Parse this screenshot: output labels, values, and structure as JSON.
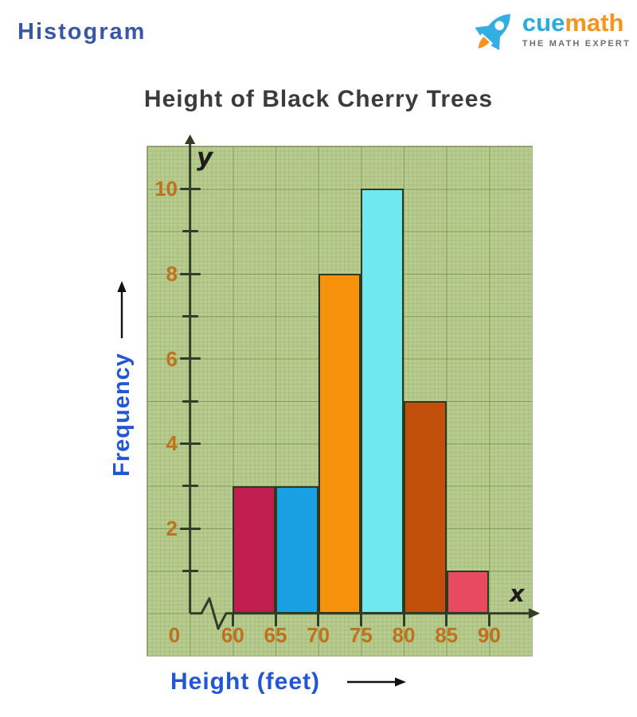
{
  "page": {
    "heading": "Histogram"
  },
  "logo": {
    "cue": "cue",
    "math": "math",
    "tagline": "THE MATH EXPERT",
    "cue_color": "#29abe2",
    "math_color": "#f7941d"
  },
  "chart_data": {
    "type": "bar",
    "title": "Height of Black Cherry Trees",
    "xlabel": "Height (feet)",
    "ylabel": "Frequency",
    "x_symbol": "x",
    "y_symbol": "y",
    "origin_label": "0",
    "bin_edges": [
      60,
      65,
      70,
      75,
      80,
      85,
      90
    ],
    "bins": [
      {
        "range": "60-65",
        "value": 3,
        "color": "#c01e4e"
      },
      {
        "range": "65-70",
        "value": 3,
        "color": "#18a0e2"
      },
      {
        "range": "70-75",
        "value": 8,
        "color": "#f6920b"
      },
      {
        "range": "75-80",
        "value": 10,
        "color": "#6fe9ef"
      },
      {
        "range": "80-85",
        "value": 5,
        "color": "#c2500b"
      },
      {
        "range": "85-90",
        "value": 1,
        "color": "#e84a62"
      }
    ],
    "x_tick_labels": [
      "60",
      "65",
      "70",
      "75",
      "80",
      "85",
      "90"
    ],
    "y_tick_labels": [
      2,
      4,
      6,
      8,
      10
    ],
    "y_tick_step": 1,
    "ylim": [
      0,
      12
    ],
    "grid": true,
    "axis_break_on_x": true,
    "plot_bg": "#b7cc8e",
    "tick_label_color": "#c1701e",
    "axis_color": "#2f3e24",
    "bar_border_color": "#2e3a1f",
    "legend": null
  }
}
